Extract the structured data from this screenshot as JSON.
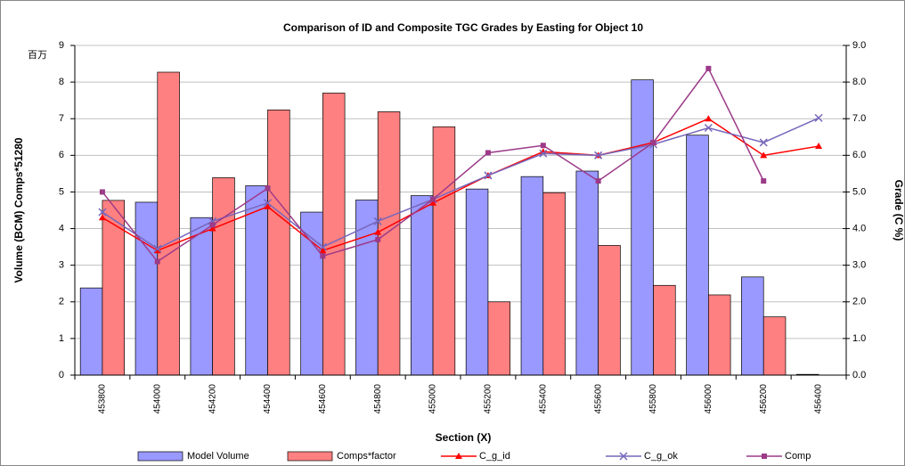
{
  "chart_data": {
    "type": "bar",
    "title": "Comparison of ID and Composite TGC Grades by Easting for Object 10",
    "x_label": "Section (X)",
    "y_label": "Volume (BCM) Comps*51280",
    "y_unit_label": "百万",
    "y2_label": "Grade (C %)",
    "categories": [
      "453800",
      "454000",
      "454200",
      "454400",
      "454600",
      "454800",
      "455000",
      "455200",
      "455400",
      "455600",
      "455800",
      "456000",
      "456200",
      "456400"
    ],
    "ylim": [
      0,
      9
    ],
    "yticks": [
      0,
      1,
      2,
      3,
      4,
      5,
      6,
      7,
      8,
      9
    ],
    "y2lim": [
      0,
      9
    ],
    "y2ticks": [
      {
        "value": 0,
        "label": "0.0"
      },
      {
        "value": 1,
        "label": "1.0"
      },
      {
        "value": 2,
        "label": "2.0"
      },
      {
        "value": 3,
        "label": "3.0"
      },
      {
        "value": 4,
        "label": "4.0"
      },
      {
        "value": 5,
        "label": "5.0"
      },
      {
        "value": 6,
        "label": "6.0"
      },
      {
        "value": 7,
        "label": "7.0"
      },
      {
        "value": 8,
        "label": "8.0"
      },
      {
        "value": 9,
        "label": "9.0"
      }
    ],
    "grid": true,
    "series": [
      {
        "name": "Model Volume",
        "type": "bar",
        "color": "#9999ff",
        "values": [
          2.38,
          4.72,
          4.3,
          5.17,
          4.45,
          4.78,
          4.9,
          5.08,
          5.42,
          5.57,
          8.06,
          6.55,
          2.68,
          0.02
        ]
      },
      {
        "name": "Comps*factor",
        "type": "bar",
        "color": "#ff8080",
        "values": [
          4.77,
          8.27,
          5.39,
          7.24,
          7.7,
          7.19,
          6.78,
          2.0,
          4.98,
          3.54,
          2.45,
          2.19,
          1.59,
          null
        ]
      },
      {
        "name": "C_g_id",
        "type": "line",
        "axis": "y2",
        "marker": "triangle",
        "color": "#ff0000",
        "values": [
          4.3,
          3.4,
          4.0,
          4.6,
          3.4,
          3.9,
          4.7,
          5.45,
          6.1,
          6.0,
          6.35,
          7.0,
          6.0,
          6.25
        ]
      },
      {
        "name": "C_g_ok",
        "type": "line",
        "axis": "y2",
        "marker": "x",
        "color": "#7766bb",
        "values": [
          4.45,
          3.45,
          4.2,
          4.7,
          3.5,
          4.2,
          4.8,
          5.45,
          6.05,
          6.0,
          6.3,
          6.75,
          6.35,
          7.02
        ]
      },
      {
        "name": "Comp",
        "type": "line",
        "axis": "y2",
        "marker": "square",
        "color": "#9c3a88",
        "values": [
          5.0,
          3.1,
          4.1,
          5.1,
          3.25,
          3.7,
          4.8,
          6.07,
          6.27,
          5.3,
          6.35,
          8.37,
          5.3,
          null
        ]
      }
    ]
  }
}
